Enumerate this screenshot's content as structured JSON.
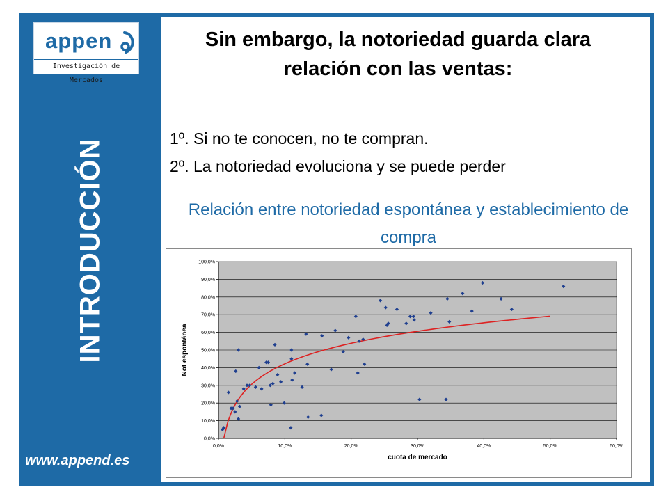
{
  "sidebar": {
    "logo_word": "appen",
    "logo_subtitle": "Investigación de Mercados",
    "section_title": "INTRODUCCIÓN",
    "website": "www.append.es"
  },
  "slide": {
    "headline": "Sin embargo, la notoriedad guarda clara relación con las ventas:",
    "point_1": "1º. Si no te conocen, no te compran.",
    "point_2": "2º. La notoriedad evoluciona y se puede perder",
    "chart_caption": "Relación entre notoriedad espontánea y establecimiento de compra"
  },
  "colors": {
    "brand": "#1e6aa6",
    "plot_bg": "#c0c0c0",
    "points": "#1f3f8f",
    "trend": "#dd2222"
  },
  "chart_data": {
    "type": "scatter",
    "title": "",
    "xlabel": "cuota de mercado",
    "ylabel": "Not espontánea",
    "xlim": [
      0,
      60
    ],
    "ylim": [
      0,
      100
    ],
    "x_ticks": [
      "0,0%",
      "10,0%",
      "20,0%",
      "30,0%",
      "40,0%",
      "50,0%",
      "60,0%"
    ],
    "y_ticks": [
      "0,0%",
      "10,0%",
      "20,0%",
      "30,0%",
      "40,0%",
      "50,0%",
      "60,0%",
      "70,0%",
      "80,0%",
      "90,0%",
      "100,0%"
    ],
    "grid": true,
    "series": [
      {
        "points": [
          [
            0.6,
            5
          ],
          [
            0.8,
            6
          ],
          [
            1.5,
            26
          ],
          [
            1.9,
            17
          ],
          [
            2.2,
            17
          ],
          [
            2.5,
            15
          ],
          [
            2.6,
            38
          ],
          [
            2.8,
            21
          ],
          [
            3.0,
            11
          ],
          [
            3.2,
            18
          ],
          [
            3.0,
            50
          ],
          [
            3.8,
            28
          ],
          [
            4.3,
            30
          ],
          [
            4.7,
            30
          ],
          [
            5.6,
            29
          ],
          [
            6.1,
            40
          ],
          [
            6.5,
            28
          ],
          [
            7.2,
            43
          ],
          [
            7.5,
            43
          ],
          [
            7.8,
            30
          ],
          [
            7.9,
            19
          ],
          [
            8.2,
            31
          ],
          [
            8.5,
            53
          ],
          [
            8.9,
            36
          ],
          [
            9.4,
            32
          ],
          [
            9.9,
            20
          ],
          [
            10.9,
            6
          ],
          [
            11.1,
            33
          ],
          [
            11.0,
            45
          ],
          [
            11.0,
            50
          ],
          [
            11.5,
            37
          ],
          [
            12.6,
            29
          ],
          [
            13.2,
            59
          ],
          [
            13.4,
            42
          ],
          [
            13.5,
            12
          ],
          [
            15.5,
            13
          ],
          [
            15.6,
            58
          ],
          [
            17.0,
            39
          ],
          [
            17.6,
            61
          ],
          [
            18.8,
            49
          ],
          [
            19.6,
            57
          ],
          [
            20.7,
            69
          ],
          [
            21.0,
            37
          ],
          [
            21.2,
            55
          ],
          [
            21.8,
            56
          ],
          [
            22.0,
            42
          ],
          [
            24.4,
            78
          ],
          [
            25.2,
            74
          ],
          [
            25.4,
            64
          ],
          [
            25.6,
            65
          ],
          [
            26.9,
            73
          ],
          [
            28.3,
            65
          ],
          [
            28.9,
            69
          ],
          [
            29.4,
            69
          ],
          [
            29.5,
            67
          ],
          [
            30.3,
            22
          ],
          [
            32.0,
            71
          ],
          [
            34.3,
            22
          ],
          [
            34.5,
            79
          ],
          [
            34.8,
            66
          ],
          [
            36.8,
            82
          ],
          [
            38.2,
            72
          ],
          [
            39.8,
            88
          ],
          [
            42.6,
            79
          ],
          [
            44.2,
            73
          ],
          [
            52.0,
            86
          ]
        ]
      }
    ],
    "trendline": {
      "type": "logarithmic",
      "x_range": [
        0.8,
        50
      ]
    }
  }
}
